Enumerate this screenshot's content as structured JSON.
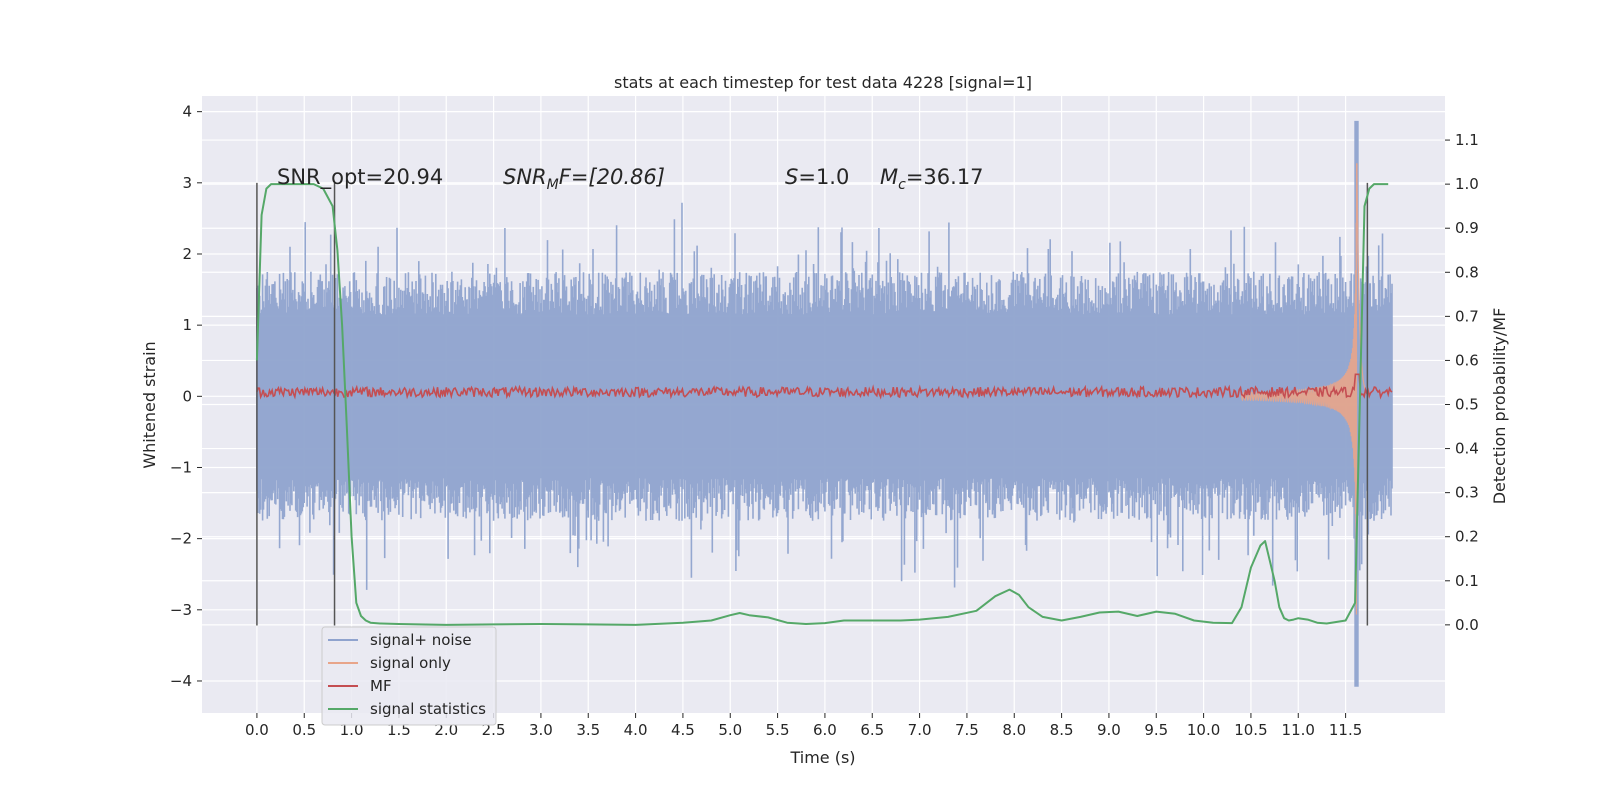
{
  "chart_data": {
    "type": "line",
    "title": "stats at each timestep for test data 4228 [signal=1]",
    "xlabel": "Time (s)",
    "ylabel_left": "Whitened strain",
    "ylabel_right": "Detection probability/MF",
    "xlim": [
      -0.58,
      12.55
    ],
    "ylim_left": [
      -4.45,
      4.22
    ],
    "ylim_right": [
      -0.2,
      1.2
    ],
    "xticks": [
      0.0,
      0.5,
      1.0,
      1.5,
      2.0,
      2.5,
      3.0,
      3.5,
      4.0,
      4.5,
      5.0,
      5.5,
      6.0,
      6.5,
      7.0,
      7.5,
      8.0,
      8.5,
      9.0,
      9.5,
      10.0,
      10.5,
      11.0,
      11.5
    ],
    "xtick_labels": [
      "0.0",
      "0.5",
      "1.0",
      "1.5",
      "2.0",
      "2.5",
      "3.0",
      "3.5",
      "4.0",
      "4.5",
      "5.0",
      "5.5",
      "6.0",
      "6.5",
      "7.0",
      "7.5",
      "8.0",
      "8.5",
      "9.0",
      "9.5",
      "10.0",
      "10.5",
      "11.0",
      "11.5"
    ],
    "yticks_left": [
      4,
      3,
      2,
      1,
      0,
      -1,
      -2,
      -3,
      -4
    ],
    "ytick_labels_left": [
      "4",
      "3",
      "2",
      "1",
      "0",
      "−1",
      "−2",
      "−3",
      "−4"
    ],
    "yticks_right": [
      1.1,
      1.0,
      0.9,
      0.8,
      0.7,
      0.6,
      0.5,
      0.4,
      0.3,
      0.2,
      0.1,
      0.0
    ],
    "ytick_labels_right": [
      "1.1",
      "1.0",
      "0.9",
      "0.8",
      "0.7",
      "0.6",
      "0.5",
      "0.4",
      "0.3",
      "0.2",
      "0.1",
      "0.0"
    ],
    "grid": true,
    "annotations": {
      "snr_opt": "SNR_opt=20.94",
      "snr_mf_main": "SNR",
      "snr_mf_sub": "M",
      "snr_mf_tail": "F=[20.86]",
      "s_main": "S",
      "s_tail": "=1.0",
      "mc_main": "M",
      "mc_sub": "c",
      "mc_tail": "=36.17"
    },
    "vertical_markers": [
      {
        "x": 0.0,
        "y_range": [
          -3.22,
          3.0
        ]
      },
      {
        "x": 0.82,
        "y_range": [
          -3.22,
          3.0
        ]
      },
      {
        "x": 11.73,
        "y_range": [
          -3.22,
          3.0
        ]
      }
    ],
    "legend_position": "lower-left",
    "series": [
      {
        "name": "signal+ noise",
        "color": "#8fa3ce",
        "axis": "left",
        "kind": "noise",
        "x_range": [
          0.0,
          11.99
        ],
        "band_mean_amplitude": 1.15,
        "max": 3.87,
        "min": -4.08
      },
      {
        "name": "signal only",
        "color": "#e8a58a",
        "axis": "left",
        "kind": "chirp",
        "x_range": [
          10.4,
          11.72
        ],
        "peak_amplitude": 3.4,
        "peak_time": 11.62
      },
      {
        "name": "MF",
        "color": "#c44e52",
        "axis": "left",
        "kind": "flat",
        "x_range": [
          0.0,
          11.99
        ],
        "level": 0.06
      },
      {
        "name": "signal statistics",
        "color": "#55a868",
        "axis": "right",
        "x": [
          0.0,
          0.05,
          0.1,
          0.15,
          0.2,
          0.3,
          0.4,
          0.5,
          0.6,
          0.7,
          0.75,
          0.8,
          0.85,
          0.9,
          0.95,
          1.0,
          1.05,
          1.1,
          1.15,
          1.2,
          1.3,
          1.5,
          2.0,
          2.5,
          3.0,
          3.5,
          4.0,
          4.5,
          4.8,
          5.0,
          5.1,
          5.2,
          5.4,
          5.6,
          5.8,
          6.0,
          6.2,
          6.5,
          6.8,
          7.0,
          7.3,
          7.6,
          7.8,
          7.95,
          8.05,
          8.15,
          8.3,
          8.5,
          8.7,
          8.9,
          9.1,
          9.3,
          9.5,
          9.7,
          9.9,
          10.1,
          10.3,
          10.4,
          10.5,
          10.6,
          10.65,
          10.75,
          10.8,
          10.85,
          10.9,
          10.95,
          11.0,
          11.1,
          11.2,
          11.3,
          11.5,
          11.6,
          11.65,
          11.7,
          11.75,
          11.8,
          11.85,
          11.9,
          11.95
        ],
        "y": [
          0.6,
          0.93,
          0.99,
          1.0,
          1.0,
          1.0,
          1.0,
          1.0,
          1.0,
          0.99,
          0.97,
          0.95,
          0.85,
          0.68,
          0.45,
          0.2,
          0.05,
          0.02,
          0.01,
          0.005,
          0.003,
          0.002,
          0.0,
          0.001,
          0.002,
          0.001,
          0.0,
          0.005,
          0.01,
          0.022,
          0.027,
          0.022,
          0.017,
          0.005,
          0.002,
          0.004,
          0.01,
          0.01,
          0.01,
          0.012,
          0.018,
          0.032,
          0.065,
          0.08,
          0.068,
          0.04,
          0.018,
          0.01,
          0.018,
          0.028,
          0.03,
          0.02,
          0.03,
          0.025,
          0.01,
          0.005,
          0.004,
          0.04,
          0.13,
          0.18,
          0.19,
          0.1,
          0.04,
          0.015,
          0.01,
          0.012,
          0.015,
          0.012,
          0.005,
          0.003,
          0.01,
          0.05,
          0.5,
          0.95,
          0.99,
          1.0,
          1.0,
          1.0,
          1.0
        ]
      }
    ]
  }
}
